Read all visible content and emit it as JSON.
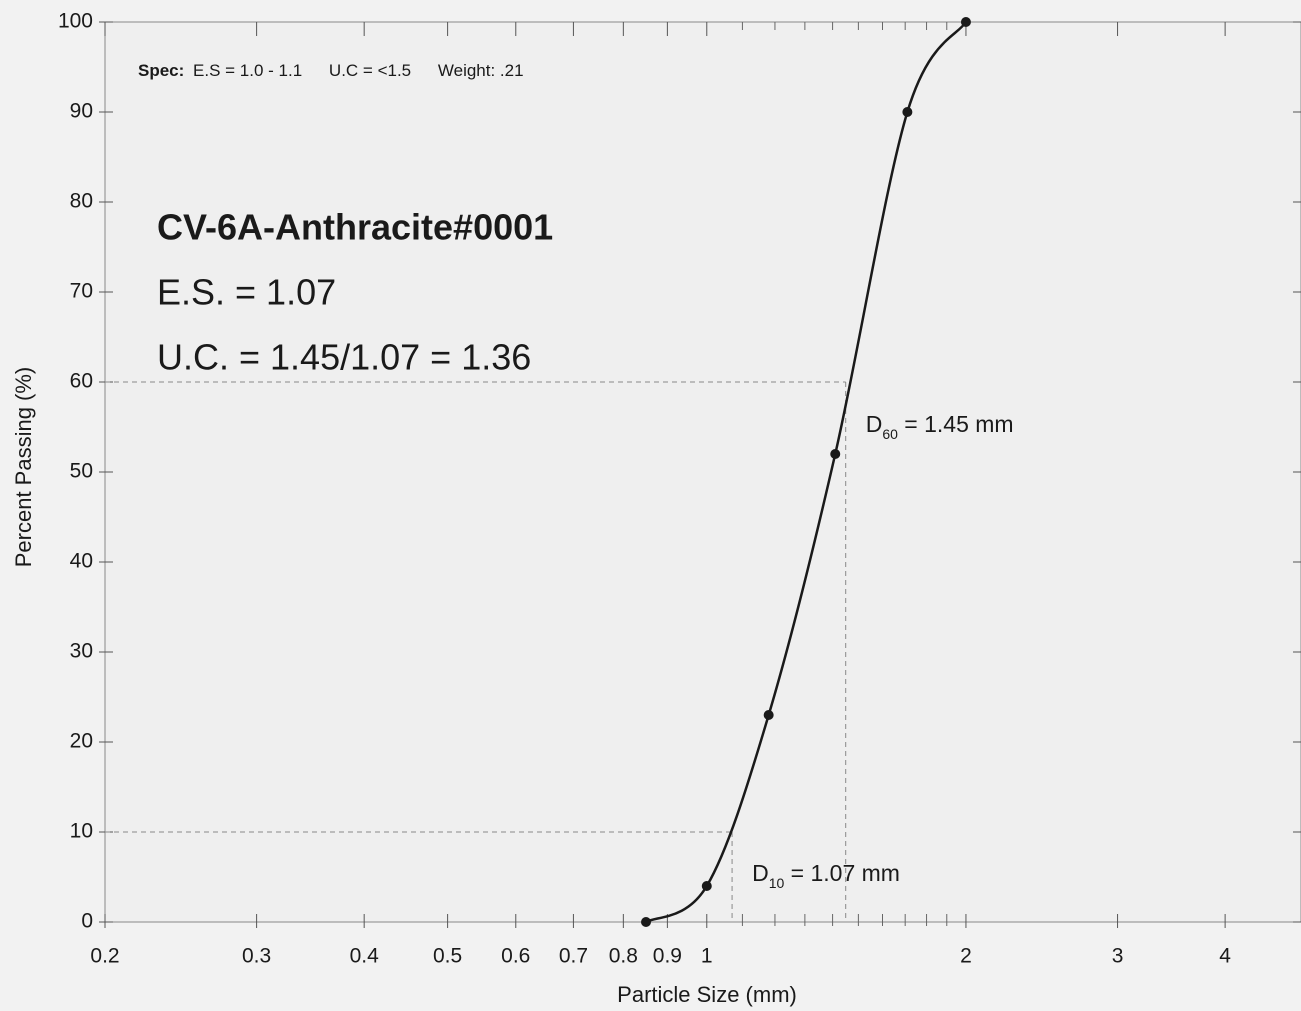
{
  "chart_data": {
    "type": "line",
    "x_label": "Particle Size (mm)",
    "y_label": "Percent Passing (%)",
    "x_scale": "log",
    "xlim": [
      0.2,
      4.9
    ],
    "ylim": [
      0,
      100
    ],
    "xticks": [
      0.2,
      0.3,
      0.4,
      0.5,
      0.6,
      0.7,
      0.8,
      0.9,
      1,
      2,
      3,
      4
    ],
    "xminor_ticks": [
      1.1,
      1.2,
      1.3,
      1.4,
      1.5,
      1.6,
      1.7,
      1.8,
      1.9
    ],
    "yticks": [
      0,
      10,
      20,
      30,
      40,
      50,
      60,
      70,
      80,
      90,
      100
    ],
    "grid": false,
    "series": [
      {
        "color": "#1a1a1a",
        "x": [
          0.85,
          1,
          1.18,
          1.41,
          1.71,
          2
        ],
        "values": [
          0,
          4,
          23,
          52,
          90,
          100
        ]
      }
    ],
    "spec": {
      "label": "Spec:",
      "es": "E.S = 1.0 - 1.1",
      "uc": "U.C = <1.5",
      "weight": "Weight: .21"
    },
    "sample_name": "CV-6A-Anthracite#0001",
    "es_text": "E.S. = 1.07",
    "uc_text": "U.C. = 1.45/1.07 = 1.36",
    "reference_lines": [
      {
        "x": 1.45,
        "y": 60,
        "label_main": "D",
        "label_sub": "60",
        "label_rest": " = 1.45 mm"
      },
      {
        "x": 1.07,
        "y": 10,
        "label_main": "D",
        "label_sub": "10",
        "label_rest": " = 1.07 mm"
      }
    ]
  }
}
